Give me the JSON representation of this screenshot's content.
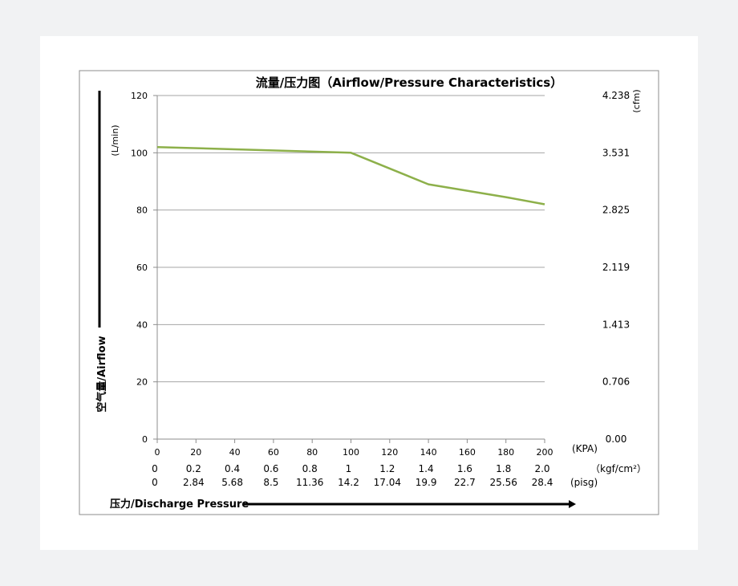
{
  "chart_data": {
    "type": "line",
    "title": "流量/压力图（Airflow/Pressure Characteristics）",
    "x": [
      0,
      20,
      40,
      60,
      80,
      100,
      120,
      140,
      160,
      180,
      200
    ],
    "x_tick_labels": [
      "0",
      "20",
      "40",
      "60",
      "80",
      "100",
      "120",
      "140",
      "160",
      "180",
      "200"
    ],
    "x_unit": "(KPA)",
    "xlim": [
      0,
      200
    ],
    "ylim": [
      0,
      120
    ],
    "y_ticks": [
      0,
      20,
      40,
      60,
      80,
      100,
      120
    ],
    "y_tick_labels": [
      "0",
      "20",
      "40",
      "60",
      "80",
      "100",
      "120"
    ],
    "y_unit": "(L/min)",
    "ylabel": "空气量/Airflow",
    "xlabel": "压力/Discharge Pressure",
    "y2_tick_labels": [
      "0.00",
      "0.706",
      "1.413",
      "2.119",
      "2.825",
      "3.531",
      "4.238"
    ],
    "y2_unit": "(cfm)",
    "kgf_row": {
      "values": [
        "0",
        "0.2",
        "0.4",
        "0.6",
        "0.8",
        "1",
        "1.2",
        "1.4",
        "1.6",
        "1.8",
        "2.0"
      ],
      "unit": "（kgf/cm²）"
    },
    "psig_row": {
      "values": [
        "0",
        "2.84",
        "5.68",
        "8.5",
        "11.36",
        "14.2",
        "17.04",
        "19.9",
        "22.7",
        "25.56",
        "28.4"
      ],
      "unit": "(pisg)"
    },
    "series": [
      {
        "points": [
          [
            0,
            102
          ],
          [
            100,
            100
          ],
          [
            140,
            89
          ],
          [
            180,
            84.5
          ],
          [
            200,
            82
          ]
        ],
        "color": "#8db04a"
      }
    ],
    "grid": true,
    "legend": "none",
    "colors": {
      "gridline": "#a6a6a6",
      "axis": "#8c8c8c",
      "frame": "#8c8c8c",
      "arrow": "#000000"
    }
  }
}
